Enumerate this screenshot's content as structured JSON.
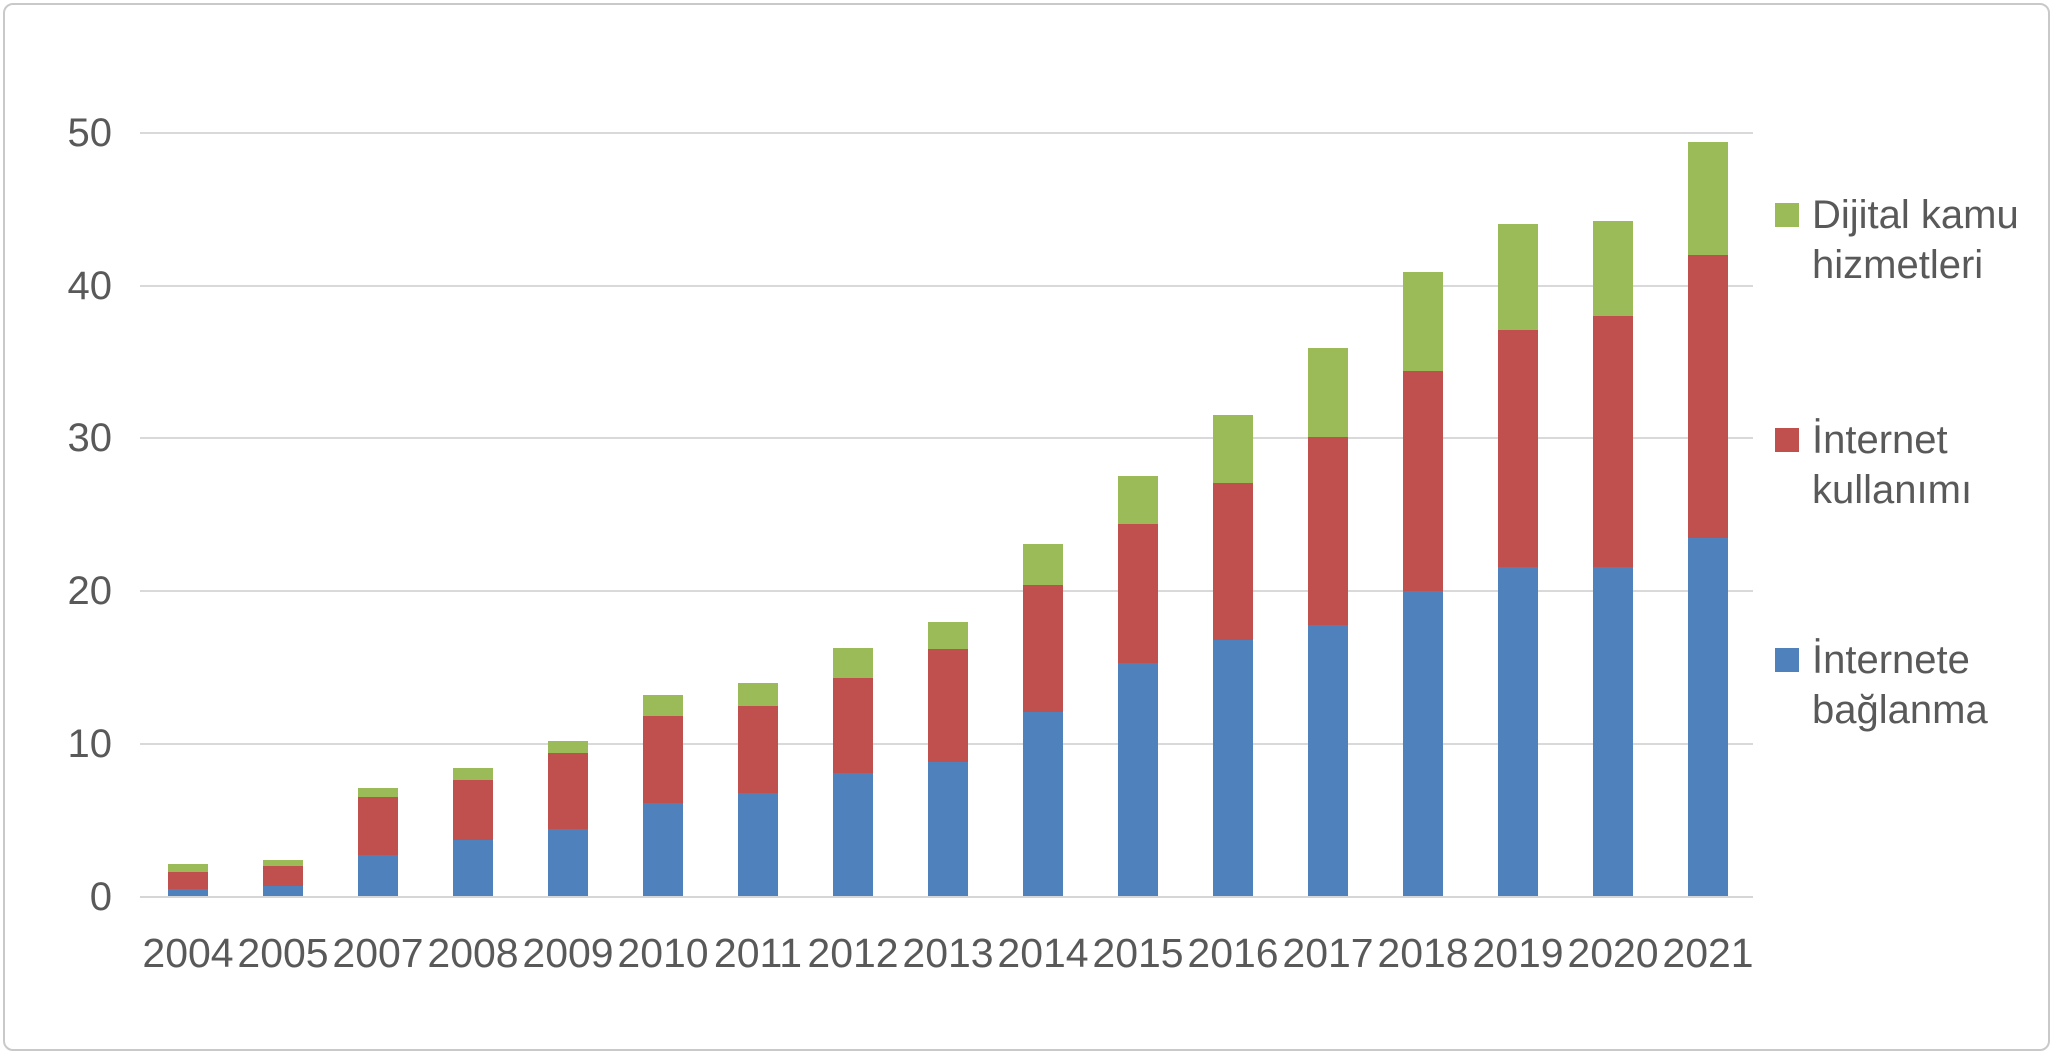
{
  "chart_data": {
    "type": "bar",
    "stacked": true,
    "title": "",
    "categories": [
      "2004",
      "2005",
      "2007",
      "2008",
      "2009",
      "2010",
      "2011",
      "2012",
      "2013",
      "2014",
      "2015",
      "2016",
      "2017",
      "2018",
      "2019",
      "2020",
      "2021"
    ],
    "series": [
      {
        "name": "İnternete bağlanma",
        "color": "#4f81bd",
        "values": [
          0.5,
          0.7,
          2.7,
          3.7,
          4.4,
          6.1,
          6.8,
          8.1,
          8.8,
          12.1,
          15.3,
          16.8,
          17.8,
          20.0,
          21.6,
          21.6,
          23.5
        ]
      },
      {
        "name": "İnternet kullanımı",
        "color": "#c0504d",
        "values": [
          1.1,
          1.3,
          3.8,
          3.9,
          5.0,
          5.7,
          5.7,
          6.2,
          7.4,
          8.3,
          9.1,
          10.3,
          12.3,
          14.4,
          15.5,
          16.4,
          18.5
        ]
      },
      {
        "name": "Dijital kamu hizmetleri",
        "color": "#9bbb59",
        "values": [
          0.5,
          0.4,
          0.6,
          0.8,
          0.8,
          1.4,
          1.5,
          2.0,
          1.8,
          2.7,
          3.1,
          4.4,
          5.8,
          6.5,
          6.9,
          6.2,
          7.4
        ]
      }
    ],
    "y_axis": {
      "min": 0,
      "max": 50,
      "tick_step": 10,
      "ticks": [
        0,
        10,
        20,
        30,
        40,
        50
      ]
    },
    "x_axis": {
      "label": ""
    },
    "grid": true,
    "legend_position": "right",
    "legend": [
      {
        "lines": [
          "Dijital kamu",
          "hizmetleri"
        ],
        "color": "#9bbb59"
      },
      {
        "lines": [
          "İnternet",
          "kullanımı"
        ],
        "color": "#c0504d"
      },
      {
        "lines": [
          "İnternete",
          "bağlanma"
        ],
        "color": "#4f81bd"
      }
    ],
    "colors": {
      "grid": "#d9d9d9",
      "axis": "#d6d6d6",
      "text": "#595959",
      "frame_border": "#c9c9c9",
      "background": "#ffffff"
    }
  }
}
